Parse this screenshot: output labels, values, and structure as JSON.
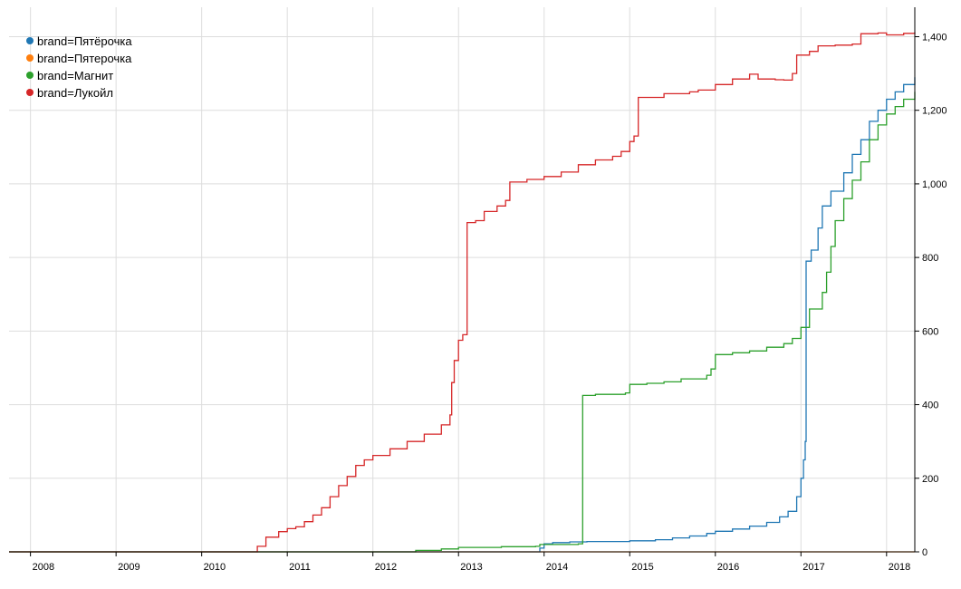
{
  "chart_data": {
    "type": "line",
    "title": "",
    "xlabel": "",
    "ylabel": "",
    "x_ticks": [
      "2008",
      "2009",
      "2010",
      "2011",
      "2012",
      "2013",
      "2014",
      "2015",
      "2016",
      "2017",
      "2018"
    ],
    "xlim": [
      2007.75,
      2018.33
    ],
    "y_ticks": [
      "0",
      "200",
      "400",
      "600",
      "800",
      "1,000",
      "1,200",
      "1,400"
    ],
    "y_tick_values": [
      0,
      200,
      400,
      600,
      800,
      1000,
      1200,
      1400
    ],
    "ylim": [
      0,
      1480
    ],
    "y_axis_side": "right",
    "grid": true,
    "legend_position": "top-left",
    "series": [
      {
        "name": "brand=Пятёрочка",
        "color": "#1f77b4",
        "points": [
          [
            2007.75,
            0
          ],
          [
            2013.9,
            0
          ],
          [
            2013.95,
            10
          ],
          [
            2014.0,
            22
          ],
          [
            2014.1,
            25
          ],
          [
            2014.3,
            27
          ],
          [
            2014.5,
            28
          ],
          [
            2015.0,
            30
          ],
          [
            2015.3,
            33
          ],
          [
            2015.5,
            38
          ],
          [
            2015.7,
            43
          ],
          [
            2015.9,
            50
          ],
          [
            2016.0,
            56
          ],
          [
            2016.2,
            62
          ],
          [
            2016.4,
            70
          ],
          [
            2016.6,
            80
          ],
          [
            2016.75,
            95
          ],
          [
            2016.85,
            110
          ],
          [
            2016.95,
            150
          ],
          [
            2017.0,
            200
          ],
          [
            2017.03,
            250
          ],
          [
            2017.05,
            300
          ],
          [
            2017.06,
            790
          ],
          [
            2017.12,
            820
          ],
          [
            2017.2,
            880
          ],
          [
            2017.25,
            940
          ],
          [
            2017.35,
            980
          ],
          [
            2017.5,
            1030
          ],
          [
            2017.6,
            1080
          ],
          [
            2017.7,
            1120
          ],
          [
            2017.8,
            1170
          ],
          [
            2017.9,
            1200
          ],
          [
            2018.0,
            1230
          ],
          [
            2018.1,
            1250
          ],
          [
            2018.2,
            1270
          ],
          [
            2018.33,
            1290
          ]
        ]
      },
      {
        "name": "brand=Пятерочка",
        "color": "#ff7f0e",
        "points": [
          [
            2007.75,
            0
          ],
          [
            2018.33,
            0
          ]
        ]
      },
      {
        "name": "brand=Магнит",
        "color": "#2ca02c",
        "points": [
          [
            2007.75,
            0
          ],
          [
            2012.3,
            0
          ],
          [
            2012.5,
            4
          ],
          [
            2012.8,
            8
          ],
          [
            2013.0,
            12
          ],
          [
            2013.5,
            14
          ],
          [
            2013.9,
            15
          ],
          [
            2013.95,
            20
          ],
          [
            2014.4,
            22
          ],
          [
            2014.45,
            425
          ],
          [
            2014.6,
            428
          ],
          [
            2014.95,
            432
          ],
          [
            2015.0,
            455
          ],
          [
            2015.2,
            458
          ],
          [
            2015.4,
            462
          ],
          [
            2015.6,
            470
          ],
          [
            2015.9,
            480
          ],
          [
            2015.95,
            497
          ],
          [
            2016.0,
            536
          ],
          [
            2016.2,
            541
          ],
          [
            2016.4,
            546
          ],
          [
            2016.6,
            556
          ],
          [
            2016.8,
            566
          ],
          [
            2016.9,
            580
          ],
          [
            2017.0,
            610
          ],
          [
            2017.1,
            660
          ],
          [
            2017.25,
            705
          ],
          [
            2017.3,
            760
          ],
          [
            2017.35,
            830
          ],
          [
            2017.4,
            900
          ],
          [
            2017.5,
            960
          ],
          [
            2017.6,
            1010
          ],
          [
            2017.7,
            1060
          ],
          [
            2017.8,
            1120
          ],
          [
            2017.9,
            1160
          ],
          [
            2018.0,
            1190
          ],
          [
            2018.1,
            1210
          ],
          [
            2018.2,
            1230
          ],
          [
            2018.33,
            1250
          ]
        ]
      },
      {
        "name": "brand=Лукойл",
        "color": "#d62728",
        "points": [
          [
            2007.75,
            0
          ],
          [
            2010.6,
            0
          ],
          [
            2010.65,
            15
          ],
          [
            2010.75,
            40
          ],
          [
            2010.9,
            55
          ],
          [
            2011.0,
            63
          ],
          [
            2011.1,
            68
          ],
          [
            2011.2,
            82
          ],
          [
            2011.3,
            100
          ],
          [
            2011.4,
            120
          ],
          [
            2011.5,
            150
          ],
          [
            2011.6,
            180
          ],
          [
            2011.7,
            205
          ],
          [
            2011.8,
            235
          ],
          [
            2011.9,
            250
          ],
          [
            2012.0,
            262
          ],
          [
            2012.2,
            280
          ],
          [
            2012.4,
            300
          ],
          [
            2012.6,
            320
          ],
          [
            2012.8,
            345
          ],
          [
            2012.9,
            372
          ],
          [
            2012.92,
            460
          ],
          [
            2012.95,
            520
          ],
          [
            2013.0,
            575
          ],
          [
            2013.05,
            590
          ],
          [
            2013.1,
            895
          ],
          [
            2013.2,
            900
          ],
          [
            2013.3,
            925
          ],
          [
            2013.45,
            940
          ],
          [
            2013.55,
            955
          ],
          [
            2013.6,
            1005
          ],
          [
            2013.8,
            1012
          ],
          [
            2014.0,
            1020
          ],
          [
            2014.2,
            1032
          ],
          [
            2014.4,
            1052
          ],
          [
            2014.6,
            1065
          ],
          [
            2014.8,
            1075
          ],
          [
            2014.9,
            1088
          ],
          [
            2015.0,
            1115
          ],
          [
            2015.05,
            1130
          ],
          [
            2015.1,
            1235
          ],
          [
            2015.4,
            1245
          ],
          [
            2015.7,
            1250
          ],
          [
            2015.8,
            1255
          ],
          [
            2016.0,
            1270
          ],
          [
            2016.2,
            1285
          ],
          [
            2016.4,
            1298
          ],
          [
            2016.5,
            1285
          ],
          [
            2016.7,
            1283
          ],
          [
            2016.8,
            1282
          ],
          [
            2016.9,
            1300
          ],
          [
            2016.95,
            1350
          ],
          [
            2017.1,
            1360
          ],
          [
            2017.2,
            1375
          ],
          [
            2017.4,
            1377
          ],
          [
            2017.6,
            1380
          ],
          [
            2017.7,
            1408
          ],
          [
            2017.9,
            1410
          ],
          [
            2018.0,
            1405
          ],
          [
            2018.2,
            1409
          ],
          [
            2018.33,
            1412
          ]
        ]
      }
    ]
  }
}
